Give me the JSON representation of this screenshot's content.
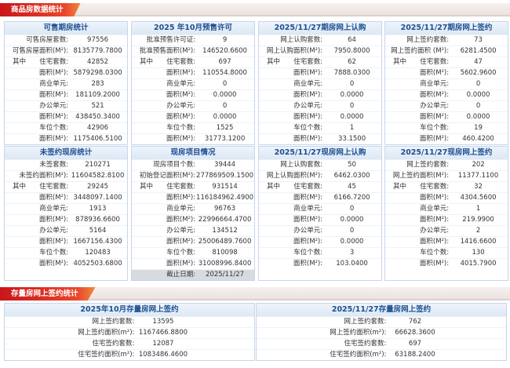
{
  "header": {
    "title": "商品房数据统计"
  },
  "panels": [
    {
      "title": "可售期房统计",
      "rows": [
        {
          "label": "可售房屋套数:",
          "value": "97556"
        },
        {
          "label": "可售房屋面积(M²):",
          "value": "8135779.7800"
        },
        {
          "group": "其中",
          "label": "住宅套数:",
          "value": "42852"
        },
        {
          "label": "面积(M²):",
          "value": "5879298.0300"
        },
        {
          "label": "商业单元:",
          "value": "283"
        },
        {
          "label": "面积(M²):",
          "value": "181109.2000"
        },
        {
          "label": "办公单元:",
          "value": "521"
        },
        {
          "label": "面积(M²):",
          "value": "438450.3400"
        },
        {
          "label": "车位个数:",
          "value": "42906"
        },
        {
          "label": "面积(M²):",
          "value": "1175406.5100"
        }
      ]
    },
    {
      "title": "2025 年10月预售许可",
      "rows": [
        {
          "label": "批准预售许可证:",
          "value": "9"
        },
        {
          "label": "批准预售面积(M²):",
          "value": "146520.6600"
        },
        {
          "group": "其中",
          "label": "住宅套数:",
          "value": "697"
        },
        {
          "label": "面积(M²):",
          "value": "110554.8000"
        },
        {
          "label": "商业单元:",
          "value": "0"
        },
        {
          "label": "面积(M²):",
          "value": "0.0000"
        },
        {
          "label": "办公单元:",
          "value": "0"
        },
        {
          "label": "面积(M²):",
          "value": "0.0000"
        },
        {
          "label": "车位个数:",
          "value": "1525"
        },
        {
          "label": "面积(M²):",
          "value": "31773.1200"
        }
      ]
    },
    {
      "title": "2025/11/27期房网上认购",
      "rows": [
        {
          "label": "网上认购套数:",
          "value": "64"
        },
        {
          "label": "网上认购面积(M²):",
          "value": "7950.8000"
        },
        {
          "group": "其中",
          "label": "住宅套数:",
          "value": "62"
        },
        {
          "label": "面积(M²):",
          "value": "7888.0300"
        },
        {
          "label": "商业单元:",
          "value": "0"
        },
        {
          "label": "面积(M²):",
          "value": "0.0000"
        },
        {
          "label": "办公单元:",
          "value": "0"
        },
        {
          "label": "面积(M²):",
          "value": "0.0000"
        },
        {
          "label": "车位个数:",
          "value": "1"
        },
        {
          "label": "面积(M²):",
          "value": "33.1500"
        }
      ]
    },
    {
      "title": "2025/11/27期房网上签约",
      "rows": [
        {
          "label": "网上签约套数:",
          "value": "73"
        },
        {
          "label": "网上签约面积 (M²):",
          "value": "6281.4500"
        },
        {
          "group": "其中",
          "label": "住宅套数:",
          "value": "47"
        },
        {
          "label": "面积(M²):",
          "value": "5602.9600"
        },
        {
          "label": "商业单元:",
          "value": "0"
        },
        {
          "label": "面积(M²):",
          "value": "0.0000"
        },
        {
          "label": "办公单元:",
          "value": "0"
        },
        {
          "label": "面积(M²):",
          "value": "0.0000"
        },
        {
          "label": "车位个数:",
          "value": "19"
        },
        {
          "label": "面积(M²):",
          "value": "460.4200"
        }
      ]
    },
    {
      "title": "未签约现房统计",
      "rows": [
        {
          "label": "未签套数:",
          "value": "210271"
        },
        {
          "label": "未签约面积(M²):",
          "value": "11604582.8100"
        },
        {
          "group": "其中",
          "label": "住宅套数:",
          "value": "29245"
        },
        {
          "label": "面积(M²):",
          "value": "3448097.1400"
        },
        {
          "label": "商业单元:",
          "value": "1913"
        },
        {
          "label": "面积(M²):",
          "value": "878936.6600"
        },
        {
          "label": "办公单元:",
          "value": "5164"
        },
        {
          "label": "面积(M²):",
          "value": "1667156.4300"
        },
        {
          "label": "车位个数:",
          "value": "120483"
        },
        {
          "label": "面积(M²):",
          "value": "4052503.6800"
        }
      ]
    },
    {
      "title": "现房项目情况",
      "rows": [
        {
          "label": "现房项目个数:",
          "value": "39444"
        },
        {
          "label": "初始登记面积(M²):",
          "value": "277869509.1500"
        },
        {
          "group": "其中",
          "label": "住宅套数:",
          "value": "931514"
        },
        {
          "label": "面积(M²):",
          "value": "116184962.4900"
        },
        {
          "label": "商业单元:",
          "value": "96763"
        },
        {
          "label": "面积(M²):",
          "value": "22996664.4700"
        },
        {
          "label": "办公单元:",
          "value": "134512"
        },
        {
          "label": "面积(M²):",
          "value": "25006489.7600"
        },
        {
          "label": "车位个数:",
          "value": "810098"
        },
        {
          "label": "面积(M²):",
          "value": "31008996.8400"
        }
      ],
      "footer": {
        "label": "截止日期:",
        "value": "2025/11/27"
      }
    },
    {
      "title": "2025/11/27现房网上认购",
      "rows": [
        {
          "label": "网上认购套数:",
          "value": "50"
        },
        {
          "label": "网上认购面积(M²):",
          "value": "6462.0300"
        },
        {
          "group": "其中",
          "label": "住宅套数:",
          "value": "45"
        },
        {
          "label": "面积(M²):",
          "value": "6166.7200"
        },
        {
          "label": "商业单元:",
          "value": "0"
        },
        {
          "label": "面积(M²):",
          "value": "0.0000"
        },
        {
          "label": "办公单元:",
          "value": "0"
        },
        {
          "label": "面积(M²):",
          "value": "0.0000"
        },
        {
          "label": "车位个数:",
          "value": "3"
        },
        {
          "label": "面积(M²):",
          "value": "103.0400"
        }
      ]
    },
    {
      "title": "2025/11/27现房网上签约",
      "rows": [
        {
          "label": "网上签约套数:",
          "value": "202"
        },
        {
          "label": "网上签约面积(M²):",
          "value": "11377.1100"
        },
        {
          "group": "其中",
          "label": "住宅套数:",
          "value": "32"
        },
        {
          "label": "面积(M²):",
          "value": "4304.5600"
        },
        {
          "label": "商业单元:",
          "value": "1"
        },
        {
          "label": "面积(M²):",
          "value": "219.9900"
        },
        {
          "label": "办公单元:",
          "value": "2"
        },
        {
          "label": "面积(M²):",
          "value": "1416.6600"
        },
        {
          "label": "车位个数:",
          "value": "130"
        },
        {
          "label": "面积(M²):",
          "value": "4015.7900"
        }
      ]
    }
  ],
  "resale": {
    "title": "存量房网上签约统计",
    "tables": [
      {
        "title": "2025年10月存量房网上签约",
        "rows": [
          {
            "label": "网上签约套数:",
            "value": "13595"
          },
          {
            "label": "网上签约面积(m²):",
            "value": "1167466.8800"
          },
          {
            "label": "住宅签约套数:",
            "value": "12087"
          },
          {
            "label": "住宅签约面积(m²):",
            "value": "1083486.4600"
          }
        ]
      },
      {
        "title": "2025/11/27存量房网上签约",
        "rows": [
          {
            "label": "网上签约套数:",
            "value": "762"
          },
          {
            "label": "网上签约面积(m²):",
            "value": "66628.3600"
          },
          {
            "label": "住宅签约套数:",
            "value": "697"
          },
          {
            "label": "住宅签约面积(m²):",
            "value": "63188.2400"
          }
        ]
      }
    ]
  }
}
